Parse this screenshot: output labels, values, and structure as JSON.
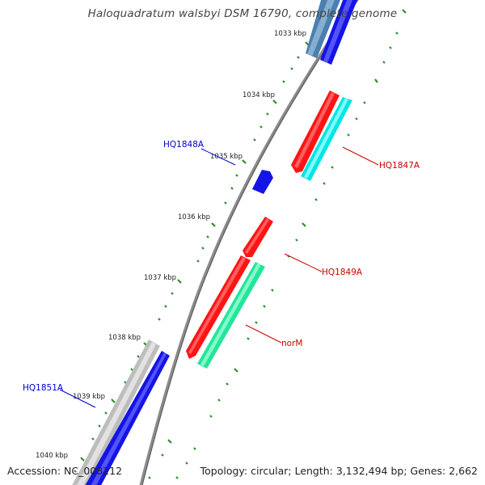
{
  "title": "Haloquadratum walsbyi DSM 16790, complete genome",
  "accession": "Accession: NC_008212",
  "summary": "Topology: circular; Length: 3,132,494 bp; Genes: 2,662",
  "colors": {
    "backbone": "#8c8c8c",
    "ticks": "#2e8b2e",
    "label_blue": "#0000cc",
    "label_red": "#cc0000"
  },
  "kbp_ticks": [
    "1033 kbp",
    "1034 kbp",
    "1035 kbp",
    "1036 kbp",
    "1037 kbp",
    "1038 kbp",
    "1039 kbp",
    "1040 kbp"
  ],
  "genes": [
    {
      "id": "gene-top-steelblue",
      "label": "",
      "color": "#4a7fb0"
    },
    {
      "id": "gene-top-blue",
      "label": "",
      "color": "#1414e6"
    },
    {
      "id": "gene-hq1847a-red",
      "label": "",
      "color": "#ff1414"
    },
    {
      "id": "gene-hq1847a",
      "label": "HQ1847A",
      "color": "#00e5e5"
    },
    {
      "id": "gene-hq1848a",
      "label": "HQ1848A",
      "color": "#1414e6"
    },
    {
      "id": "gene-hq1849a",
      "label": "HQ1849A",
      "color": "#ff1414"
    },
    {
      "id": "gene-norm-red",
      "label": "",
      "color": "#ff1414"
    },
    {
      "id": "gene-norm",
      "label": "norM",
      "color": "#22e69a"
    },
    {
      "id": "gene-bottom-gray",
      "label": "",
      "color": "#bdbdbd"
    },
    {
      "id": "gene-hq1851a",
      "label": "HQ1851A",
      "color": "#1414e6"
    }
  ]
}
